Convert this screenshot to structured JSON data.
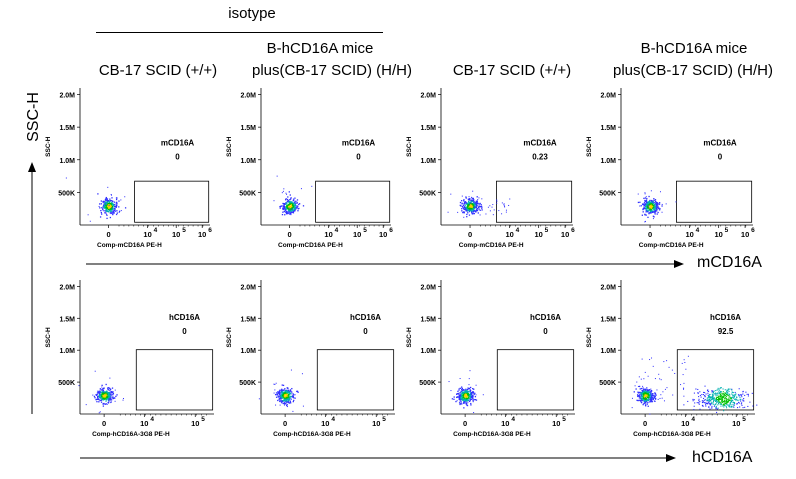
{
  "header": {
    "group_label": "isotype",
    "columns": [
      {
        "line1": "",
        "line2": "CB-17 SCID (+/+)"
      },
      {
        "line1": "B-hCD16A mice",
        "line2": "plus(CB-17 SCID)  (H/H)"
      },
      {
        "line1": "",
        "line2": "CB-17 SCID (+/+)"
      },
      {
        "line1": "B-hCD16A mice",
        "line2": "plus(CB-17 SCID)  (H/H)"
      }
    ]
  },
  "axes": {
    "y_big": "SSC-H",
    "x_big_row1": "mCD16A",
    "x_big_row2": "hCD16A"
  },
  "colors": {
    "low": "#3030ff",
    "mid": "#00b0b0",
    "high": "#00c000",
    "peak": "#ffd000",
    "gate": "#000000"
  },
  "chart_data": [
    {
      "type": "scatter",
      "row": 1,
      "col": 1,
      "gate_label": "mCD16A",
      "gate_value": "0",
      "xlabel": "Comp-mCD16A PE-H",
      "ylabel": "SSC-H",
      "x_ticks": [
        "0",
        "10",
        "10",
        "10"
      ],
      "x_tick_exponents": [
        "",
        "4",
        "5",
        "6"
      ],
      "y_ticks": [
        "2.0M",
        "1.5M",
        "1.0M",
        "500K"
      ],
      "ylim": [
        0,
        2100000
      ]
    },
    {
      "type": "scatter",
      "row": 1,
      "col": 2,
      "gate_label": "mCD16A",
      "gate_value": "0",
      "xlabel": "Comp-mCD16A PE-H",
      "ylabel": "SSC-H",
      "x_ticks": [
        "0",
        "10",
        "10",
        "10"
      ],
      "x_tick_exponents": [
        "",
        "4",
        "5",
        "6"
      ],
      "y_ticks": [
        "2.0M",
        "1.5M",
        "1.0M",
        "500K"
      ],
      "ylim": [
        0,
        2100000
      ]
    },
    {
      "type": "scatter",
      "row": 1,
      "col": 3,
      "gate_label": "mCD16A",
      "gate_value": "0.23",
      "xlabel": "Comp-mCD16A PE-H",
      "ylabel": "SSC-H",
      "x_ticks": [
        "0",
        "10",
        "10",
        "10"
      ],
      "x_tick_exponents": [
        "",
        "4",
        "5",
        "6"
      ],
      "y_ticks": [
        "2.0M",
        "1.5M",
        "1.0M",
        "500K"
      ],
      "ylim": [
        0,
        2100000
      ]
    },
    {
      "type": "scatter",
      "row": 1,
      "col": 4,
      "gate_label": "mCD16A",
      "gate_value": "0",
      "xlabel": "Comp-mCD16A PE-H",
      "ylabel": "SSC-H",
      "x_ticks": [
        "0",
        "10",
        "10",
        "10"
      ],
      "x_tick_exponents": [
        "",
        "4",
        "5",
        "6"
      ],
      "y_ticks": [
        "2.0M",
        "1.5M",
        "1.0M",
        "500K"
      ],
      "ylim": [
        0,
        2100000
      ]
    },
    {
      "type": "scatter",
      "row": 2,
      "col": 1,
      "gate_label": "hCD16A",
      "gate_value": "0",
      "xlabel": "Comp-hCD16A-3G8 PE-H",
      "ylabel": "SSC-H",
      "x_ticks": [
        "0",
        "10",
        "10"
      ],
      "x_tick_exponents": [
        "",
        "4",
        "5"
      ],
      "y_ticks": [
        "2.0M",
        "1.5M",
        "1.0M",
        "500K"
      ],
      "ylim": [
        0,
        2100000
      ]
    },
    {
      "type": "scatter",
      "row": 2,
      "col": 2,
      "gate_label": "hCD16A",
      "gate_value": "0",
      "xlabel": "Comp-hCD16A-3G8 PE-H",
      "ylabel": "SSC-H",
      "x_ticks": [
        "0",
        "10",
        "10"
      ],
      "x_tick_exponents": [
        "",
        "4",
        "5"
      ],
      "y_ticks": [
        "2.0M",
        "1.5M",
        "1.0M",
        "500K"
      ],
      "ylim": [
        0,
        2100000
      ]
    },
    {
      "type": "scatter",
      "row": 2,
      "col": 3,
      "gate_label": "hCD16A",
      "gate_value": "0",
      "xlabel": "Comp-hCD16A-3G8 PE-H",
      "ylabel": "SSC-H",
      "x_ticks": [
        "0",
        "10",
        "10"
      ],
      "x_tick_exponents": [
        "",
        "4",
        "5"
      ],
      "y_ticks": [
        "2.0M",
        "1.5M",
        "1.0M",
        "500K"
      ],
      "ylim": [
        0,
        2100000
      ]
    },
    {
      "type": "scatter",
      "row": 2,
      "col": 4,
      "gate_label": "hCD16A",
      "gate_value": "92.5",
      "xlabel": "Comp-hCD16A-3G8 PE-H",
      "ylabel": "SSC-H",
      "x_ticks": [
        "0",
        "10",
        "10"
      ],
      "x_tick_exponents": [
        "",
        "4",
        "5"
      ],
      "y_ticks": [
        "2.0M",
        "1.5M",
        "1.0M",
        "500K"
      ],
      "ylim": [
        0,
        2100000
      ]
    }
  ]
}
